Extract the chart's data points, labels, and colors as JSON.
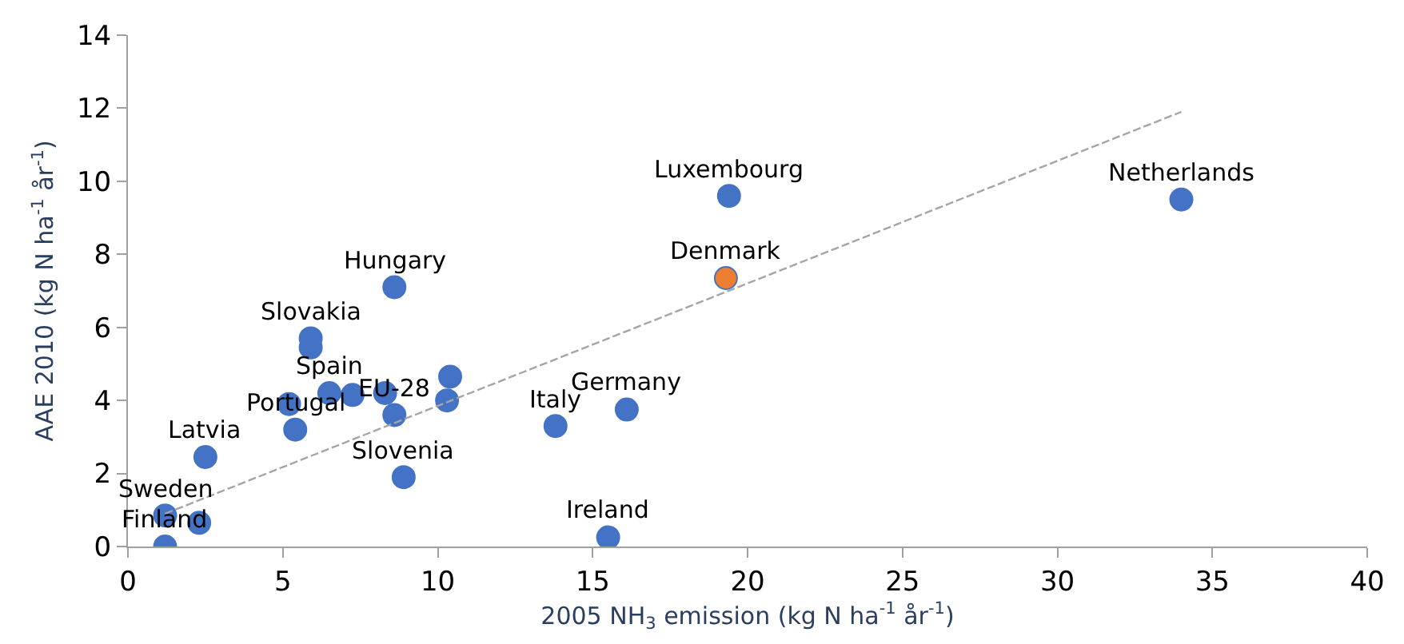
{
  "chart_data": {
    "type": "scatter",
    "xlabel": "2005 NH$_{3}$ emission (kg N ha$^{-1}$ år$^{-1}$)",
    "ylabel": "AAE 2010 (kg N ha$^{-1}$ år$^{-1}$)",
    "xlim": [
      0,
      40
    ],
    "xticks": [
      0,
      5,
      10,
      15,
      20,
      25,
      30,
      35,
      40
    ],
    "ylim": [
      0,
      14
    ],
    "yticks": [
      0,
      2,
      4,
      6,
      8,
      10,
      12,
      14
    ],
    "marker": "circle",
    "series": [
      {
        "color": "#4472c4",
        "x": [
          1.2,
          1.2,
          2.3,
          2.5,
          5.2,
          5.4,
          5.9,
          5.9,
          6.5,
          7.25,
          8.3,
          8.6,
          8.6,
          8.9,
          10.4,
          10.3,
          13.8,
          16.1,
          15.5,
          19.4,
          34.0
        ],
        "values": [
          0.0,
          0.85,
          0.65,
          2.45,
          3.9,
          3.2,
          5.7,
          5.45,
          4.2,
          4.15,
          4.2,
          3.6,
          7.1,
          1.9,
          4.65,
          4.0,
          3.3,
          3.75,
          0.25,
          9.6,
          9.5
        ]
      },
      {
        "color": "#ed7d31",
        "x": [
          19.3
        ],
        "values": [
          7.35
        ]
      },
      {
        "type": "line",
        "color": "#a5a5a5",
        "line_style": "dashed",
        "marker": "none",
        "x": [
          1.2,
          34.0
        ],
        "values": [
          0.9,
          11.9
        ]
      }
    ],
    "annotations": [
      {
        "text": "Finland",
        "x": 1.2,
        "y": 0.0
      },
      {
        "text": "Sweden",
        "x": 1.2,
        "y": 0.85
      },
      {
        "text": "Latvia",
        "x": 2.5,
        "y": 2.45
      },
      {
        "text": "Portugal",
        "x": 5.4,
        "y": 3.2
      },
      {
        "text": "Slovakia",
        "x": 5.9,
        "y": 5.7
      },
      {
        "text": "Spain",
        "x": 6.5,
        "y": 4.2
      },
      {
        "text": "EU-28",
        "x": 8.6,
        "y": 3.6
      },
      {
        "text": "Hungary",
        "x": 8.6,
        "y": 7.1
      },
      {
        "text": "Slovenia",
        "x": 8.9,
        "y": 1.9
      },
      {
        "text": "Italy",
        "x": 13.8,
        "y": 3.3
      },
      {
        "text": "Germany",
        "x": 16.1,
        "y": 3.75
      },
      {
        "text": "Ireland",
        "x": 15.5,
        "y": 0.25
      },
      {
        "text": "Luxembourg",
        "x": 19.4,
        "y": 9.6
      },
      {
        "text": "Denmark",
        "x": 19.3,
        "y": 7.35
      },
      {
        "text": "Netherlands",
        "x": 34.0,
        "y": 9.5
      }
    ]
  }
}
